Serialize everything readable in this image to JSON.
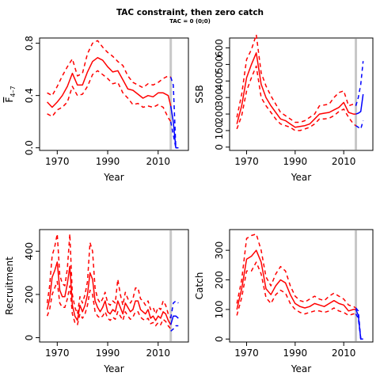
{
  "figure": {
    "title": "TAC constraint, then zero catch",
    "subtitle": "TAC = 0 (0;0)"
  },
  "colors": {
    "historical": "#ff0000",
    "projection": "#0000ff",
    "divider": "#c8c8c8"
  },
  "chart_data": [
    {
      "type": "line",
      "panel": "F",
      "xlabel": "Year",
      "ylabel": "F̅ 4–7",
      "ylabel_main": "F",
      "ylabel_sub": "4–7",
      "xlim": [
        1963,
        2022
      ],
      "ylim": [
        -0.02,
        0.84
      ],
      "xticks": [
        1970,
        1990,
        2010
      ],
      "yticks": [
        0.0,
        0.4,
        0.8
      ],
      "ytick_labels": [
        "0.0",
        "0.4",
        "0.8"
      ],
      "divider_year": 2015,
      "historical": {
        "x": [
          1966,
          1968,
          1970,
          1972,
          1974,
          1976,
          1978,
          1980,
          1982,
          1984,
          1986,
          1988,
          1990,
          1992,
          1994,
          1996,
          1998,
          2000,
          2002,
          2004,
          2006,
          2008,
          2010,
          2012,
          2014,
          2015
        ],
        "estimate": [
          0.35,
          0.31,
          0.35,
          0.4,
          0.47,
          0.57,
          0.48,
          0.48,
          0.58,
          0.66,
          0.69,
          0.67,
          0.62,
          0.58,
          0.59,
          0.52,
          0.45,
          0.44,
          0.41,
          0.38,
          0.4,
          0.39,
          0.42,
          0.42,
          0.4,
          0.32
        ],
        "upper": [
          0.42,
          0.4,
          0.47,
          0.55,
          0.62,
          0.68,
          0.55,
          0.57,
          0.72,
          0.8,
          0.82,
          0.77,
          0.73,
          0.7,
          0.66,
          0.63,
          0.55,
          0.5,
          0.48,
          0.46,
          0.49,
          0.48,
          0.5,
          0.53,
          0.55,
          0.54
        ],
        "lower": [
          0.26,
          0.24,
          0.29,
          0.31,
          0.35,
          0.47,
          0.4,
          0.41,
          0.47,
          0.56,
          0.59,
          0.56,
          0.53,
          0.49,
          0.5,
          0.42,
          0.38,
          0.33,
          0.34,
          0.31,
          0.32,
          0.31,
          0.33,
          0.31,
          0.23,
          0.2
        ]
      },
      "projection": {
        "x": [
          2015,
          2016,
          2017,
          2018
        ],
        "estimate": [
          0.32,
          0.2,
          0.0,
          0.0
        ],
        "upper": [
          0.54,
          0.48,
          0.0,
          0.0
        ],
        "lower": [
          0.2,
          0.1,
          0.0,
          0.0
        ]
      }
    },
    {
      "type": "line",
      "panel": "SSB",
      "xlabel": "Year",
      "ylabel": "SSB",
      "xlim": [
        1963,
        2022
      ],
      "ylim": [
        -20,
        660
      ],
      "xticks": [
        1970,
        1990,
        2010
      ],
      "yticks": [
        0,
        100,
        200,
        300,
        400,
        500,
        600
      ],
      "ytick_labels": [
        "0",
        "100",
        "200",
        "300",
        "400",
        "500",
        "600"
      ],
      "divider_year": 2015,
      "historical": {
        "x": [
          1966,
          1968,
          1970,
          1972,
          1974,
          1976,
          1978,
          1980,
          1982,
          1984,
          1986,
          1988,
          1990,
          1992,
          1994,
          1996,
          1998,
          2000,
          2002,
          2004,
          2006,
          2008,
          2010,
          2012,
          2014,
          2015
        ],
        "estimate": [
          140,
          250,
          420,
          500,
          570,
          380,
          300,
          250,
          210,
          170,
          160,
          140,
          120,
          125,
          130,
          140,
          170,
          200,
          205,
          210,
          225,
          240,
          270,
          210,
          200,
          200
        ],
        "upper": [
          180,
          320,
          530,
          590,
          680,
          450,
          370,
          310,
          260,
          210,
          190,
          170,
          150,
          150,
          160,
          180,
          200,
          250,
          255,
          260,
          300,
          330,
          340,
          250,
          260,
          250
        ],
        "lower": [
          110,
          190,
          340,
          420,
          490,
          300,
          250,
          210,
          170,
          140,
          130,
          120,
          100,
          100,
          110,
          120,
          140,
          170,
          170,
          175,
          190,
          215,
          230,
          180,
          140,
          130
        ]
      },
      "projection": {
        "x": [
          2015,
          2016,
          2017,
          2018
        ],
        "estimate": [
          200,
          205,
          215,
          320
        ],
        "upper": [
          250,
          300,
          380,
          520
        ],
        "lower": [
          130,
          120,
          110,
          160
        ]
      }
    },
    {
      "type": "line",
      "panel": "Recruitment",
      "xlabel": "Year",
      "ylabel": "Recruitment",
      "xlim": [
        1963,
        2022
      ],
      "ylim": [
        -20,
        500
      ],
      "xticks": [
        1970,
        1990,
        2010
      ],
      "yticks": [
        0,
        200,
        400
      ],
      "ytick_labels": [
        "0",
        "200",
        "400"
      ],
      "divider_year": 2015,
      "historical": {
        "x": [
          1966,
          1967,
          1968,
          1969,
          1970,
          1971,
          1972,
          1973,
          1974,
          1975,
          1976,
          1977,
          1978,
          1979,
          1980,
          1981,
          1982,
          1983,
          1984,
          1985,
          1986,
          1987,
          1988,
          1989,
          1990,
          1991,
          1992,
          1993,
          1994,
          1995,
          1996,
          1997,
          1998,
          1999,
          2000,
          2001,
          2002,
          2003,
          2004,
          2005,
          2006,
          2007,
          2008,
          2009,
          2010,
          2011,
          2012,
          2013,
          2014,
          2015
        ],
        "estimate": [
          130,
          180,
          280,
          310,
          350,
          220,
          190,
          190,
          250,
          330,
          150,
          100,
          80,
          150,
          120,
          150,
          200,
          300,
          270,
          170,
          140,
          120,
          140,
          170,
          120,
          110,
          130,
          120,
          170,
          140,
          110,
          160,
          140,
          120,
          130,
          170,
          170,
          130,
          120,
          110,
          130,
          90,
          100,
          80,
          100,
          90,
          120,
          110,
          80,
          60
        ],
        "upper": [
          160,
          240,
          380,
          420,
          480,
          290,
          250,
          240,
          320,
          480,
          200,
          140,
          110,
          190,
          160,
          200,
          260,
          440,
          400,
          230,
          180,
          160,
          180,
          210,
          160,
          150,
          170,
          160,
          270,
          200,
          150,
          210,
          180,
          160,
          180,
          230,
          230,
          180,
          170,
          150,
          170,
          130,
          140,
          110,
          140,
          130,
          170,
          150,
          110,
          90
        ],
        "lower": [
          100,
          130,
          200,
          230,
          260,
          160,
          140,
          140,
          180,
          240,
          110,
          70,
          60,
          110,
          90,
          110,
          150,
          220,
          200,
          120,
          100,
          90,
          100,
          120,
          90,
          80,
          95,
          85,
          120,
          100,
          80,
          120,
          100,
          85,
          95,
          120,
          120,
          95,
          85,
          80,
          90,
          65,
          70,
          55,
          70,
          60,
          85,
          75,
          55,
          40
        ]
      },
      "projection": {
        "x": [
          2015,
          2016,
          2017,
          2018
        ],
        "estimate": [
          60,
          100,
          100,
          90
        ],
        "upper": [
          90,
          160,
          170,
          160
        ],
        "lower": [
          30,
          40,
          55,
          55
        ]
      }
    },
    {
      "type": "line",
      "panel": "Catch",
      "xlabel": "Year",
      "ylabel": "Catch",
      "xlim": [
        1963,
        2022
      ],
      "ylim": [
        -10,
        370
      ],
      "xticks": [
        1970,
        1990,
        2010
      ],
      "yticks": [
        0,
        100,
        200,
        300
      ],
      "ytick_labels": [
        "0",
        "100",
        "200",
        "300"
      ],
      "divider_year": 2015,
      "historical": {
        "x": [
          1966,
          1968,
          1970,
          1972,
          1974,
          1976,
          1978,
          1980,
          1982,
          1984,
          1986,
          1988,
          1990,
          1992,
          1994,
          1996,
          1998,
          2000,
          2002,
          2004,
          2006,
          2008,
          2010,
          2012,
          2014,
          2015
        ],
        "estimate": [
          100,
          170,
          270,
          280,
          300,
          260,
          170,
          150,
          180,
          200,
          190,
          150,
          120,
          110,
          105,
          110,
          120,
          115,
          110,
          120,
          130,
          120,
          115,
          95,
          100,
          100
        ],
        "upper": [
          120,
          200,
          340,
          350,
          355,
          300,
          210,
          180,
          220,
          245,
          230,
          180,
          145,
          130,
          125,
          135,
          145,
          135,
          130,
          145,
          155,
          145,
          135,
          115,
          110,
          105
        ],
        "lower": [
          80,
          140,
          230,
          230,
          260,
          220,
          140,
          120,
          150,
          165,
          155,
          120,
          100,
          90,
          85,
          90,
          95,
          95,
          90,
          95,
          105,
          95,
          90,
          80,
          85,
          85
        ]
      },
      "projection": {
        "x": [
          2015,
          2016,
          2017,
          2018
        ],
        "estimate": [
          100,
          80,
          0,
          0
        ],
        "upper": [
          105,
          95,
          0,
          0
        ],
        "lower": [
          85,
          70,
          0,
          0
        ]
      }
    }
  ]
}
